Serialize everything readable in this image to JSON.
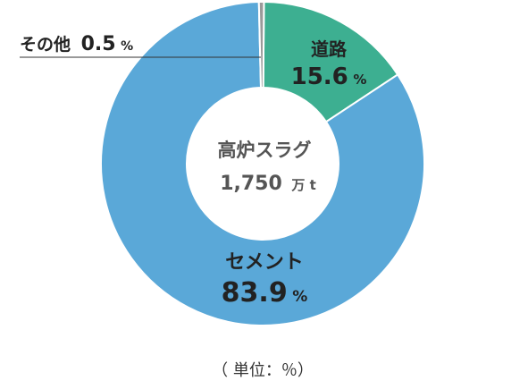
{
  "chart_data": {
    "type": "pie",
    "variant": "donut",
    "center_label": {
      "title": "高炉スラグ",
      "value": "1,750",
      "unit": "万 t"
    },
    "slices": [
      {
        "label": "道路",
        "value": 15.6,
        "color": "#3daf91"
      },
      {
        "label": "セメント",
        "value": 83.9,
        "color": "#5aa8d8"
      },
      {
        "label": "その他",
        "value": 0.5,
        "color": "#9a9a9a"
      }
    ],
    "percent_symbol": "%",
    "unit_note": "（ 単位：％）"
  }
}
